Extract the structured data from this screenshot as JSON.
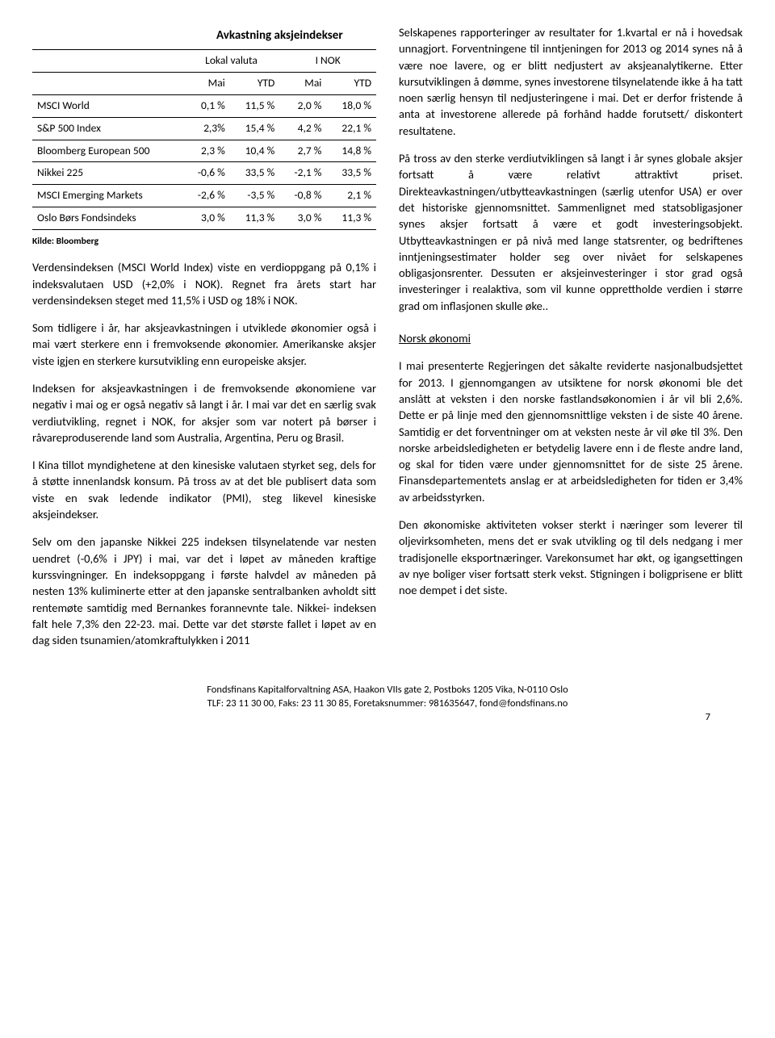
{
  "table": {
    "title": "Avkastning aksjeindekser",
    "group_headers": [
      "Lokal valuta",
      "I NOK"
    ],
    "col_headers": [
      "Mai",
      "YTD",
      "Mai",
      "YTD"
    ],
    "rows": [
      {
        "label": "MSCI World",
        "vals": [
          "0,1 %",
          "11,5 %",
          "2,0 %",
          "18,0 %"
        ]
      },
      {
        "label": "S&P 500 Index",
        "vals": [
          "2,3%",
          "15,4 %",
          "4,2 %",
          "22,1 %"
        ]
      },
      {
        "label": "Bloomberg European 500",
        "vals": [
          "2,3 %",
          "10,4 %",
          "2,7 %",
          "14,8 %"
        ]
      },
      {
        "label": "Nikkei 225",
        "vals": [
          "-0,6 %",
          "33,5 %",
          "-2,1 %",
          "33,5 %"
        ]
      },
      {
        "label": "MSCI Emerging Markets",
        "vals": [
          "-2,6 %",
          "-3,5 %",
          "-0,8 %",
          "2,1 %"
        ]
      },
      {
        "label": "Oslo Børs Fondsindeks",
        "vals": [
          "3,0 %",
          "11,3 %",
          "3,0 %",
          "11,3 %"
        ]
      }
    ],
    "source": "Kilde: Bloomberg"
  },
  "left": {
    "p1": "Verdensindeksen (MSCI World Index) viste en verdioppgang på 0,1% i indeksvalutaen USD (+2,0% i NOK). Regnet fra årets start har verdensindeksen steget med 11,5% i USD og 18% i NOK.",
    "p2": "Som tidligere i år, har aksjeavkastningen i utviklede økonomier også i mai vært sterkere enn i fremvoksende økonomier. Amerikanske aksjer viste igjen en sterkere kursutvikling enn europeiske aksjer.",
    "p3": "Indeksen for aksjeavkastningen i de fremvoksende økonomiene var negativ i mai og er også negativ så langt i år. I mai var det en særlig svak verdiutvikling, regnet i NOK, for aksjer som var notert på børser i råvareproduserende land som Australia, Argentina, Peru og Brasil.",
    "p4": "I Kina tillot myndighetene at den kinesiske valutaen styrket seg, dels for å støtte innenlandsk konsum. På tross av at det ble publisert data som viste en svak ledende indikator (PMI), steg likevel kinesiske aksjeindekser.",
    "p5": "Selv om den japanske Nikkei 225 indeksen tilsynelatende var nesten uendret (-0,6% i JPY) i mai, var det i løpet av måneden kraftige kurssvingninger. En indeksoppgang i første halvdel av måneden på nesten 13% kuliminerte etter at den japanske sentralbanken avholdt sitt rentemøte samtidig med Bernankes forannevnte tale. Nikkei- indeksen falt hele 7,3% den 22-23. mai. Dette var det største fallet i løpet av en dag siden tsunamien/atomkraftulykken i 2011"
  },
  "right": {
    "p1": "Selskapenes rapporteringer av resultater for 1.kvartal er nå i hovedsak unnagjort. Forventningene til inntjeningen for 2013 og 2014 synes nå å være noe lavere, og er blitt nedjustert av aksjeanalytikerne. Etter kursutviklingen å dømme, synes investorene tilsynelatende ikke å ha tatt noen særlig hensyn til nedjusteringene i mai. Det er derfor fristende å anta at investorene allerede på forhånd hadde forutsett/ diskontert resultatene.",
    "p2": "På tross av den sterke verdiutviklingen så langt i år synes globale aksjer fortsatt å være relativt attraktivt priset. Direkteavkastningen/utbytteavkastningen (særlig utenfor USA) er over det historiske gjennomsnittet. Sammenlignet med statsobligasjoner synes aksjer fortsatt å være et godt investeringsobjekt. Utbytteavkastningen er på nivå med lange statsrenter, og bedriftenes inntjeningsestimater holder seg over nivået for selskapenes obligasjonsrenter. Dessuten er aksjeinvesteringer i stor grad også investeringer i realaktiva, som vil kunne opprettholde verdien i større grad om inflasjonen skulle øke..",
    "h1": "Norsk økonomi",
    "p3": "I mai presenterte Regjeringen det såkalte reviderte nasjonalbudsjettet for 2013. I gjennomgangen av utsiktene for norsk økonomi ble det anslått at veksten i den norske fastlandsøkonomien i år vil bli 2,6%. Dette er på linje med den gjennomsnittlige veksten i de siste 40 årene. Samtidig er det forventninger om at veksten neste år vil øke til 3%. Den norske arbeidsledigheten er betydelig lavere enn i de fleste andre land, og skal for tiden være under gjennomsnittet for de siste 25 årene. Finansdepartementets anslag er at arbeidsledigheten for tiden er 3,4% av arbeidsstyrken.",
    "p4": "Den økonomiske aktiviteten vokser sterkt i næringer som leverer til oljevirksomheten, mens det er svak utvikling og til dels nedgang i mer tradisjonelle eksportnæringer. Varekonsumet har økt, og igangsettingen av nye boliger viser fortsatt sterk vekst. Stigningen i boligprisene er blitt noe dempet i det siste."
  },
  "footer": {
    "line1": "Fondsfinans Kapitalforvaltning ASA, Haakon VIIs gate 2, Postboks 1205 Vika, N-0110 Oslo",
    "line2": "TLF: 23 11 30 00, Faks: 23 11 30 85, Foretaksnummer: 981635647, fond@fondsfinans.no",
    "page": "7"
  }
}
